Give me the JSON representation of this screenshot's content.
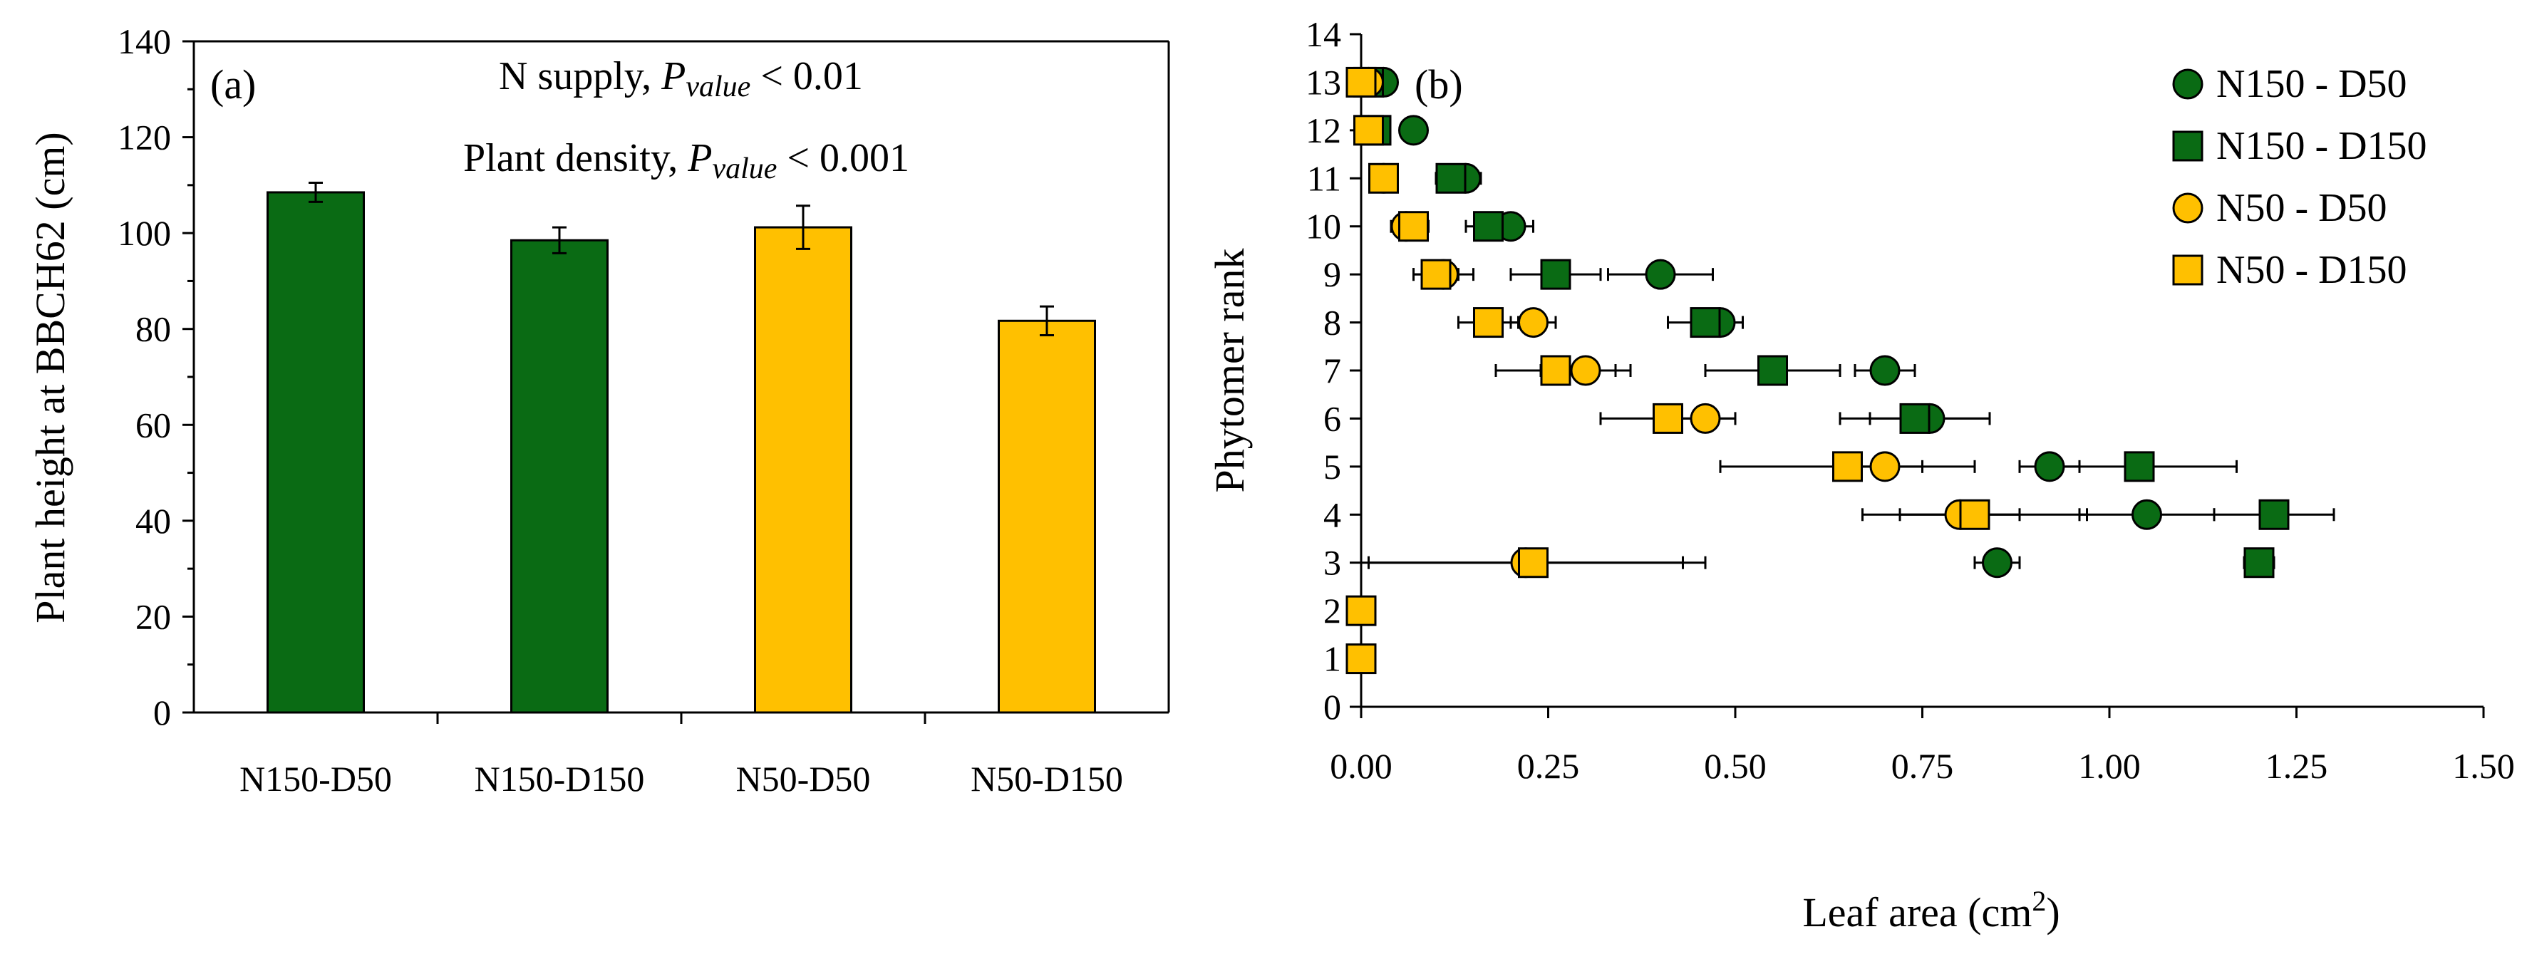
{
  "colors": {
    "green": "#0a6b14",
    "yellow": "#ffc000",
    "outline": "#000000"
  },
  "chart_data": [
    {
      "panel": "(a)",
      "type": "bar",
      "title": "",
      "ylabel": "Plant height at BBCH62  (cm)",
      "xlabel": "",
      "ylim": [
        0,
        140
      ],
      "ytick_step": 20,
      "yticks": [
        "0",
        "20",
        "40",
        "60",
        "80",
        "100",
        "120",
        "140"
      ],
      "categories": [
        "N150-D50",
        "N150-D150",
        "N50-D50",
        "N50-D150"
      ],
      "values": [
        108.5,
        98.5,
        101.2,
        81.7
      ],
      "errors": [
        2.0,
        2.7,
        4.5,
        3.0
      ],
      "bar_colors": [
        "green",
        "green",
        "yellow",
        "yellow"
      ],
      "annotations": [
        {
          "prefix": "N supply, ",
          "italic": "P",
          "sub": "value",
          "suffix": " < 0.01"
        },
        {
          "prefix": "Plant density, ",
          "italic": "P",
          "sub": "value",
          "suffix": " < 0.001"
        }
      ],
      "grid": false
    },
    {
      "panel": "(b)",
      "type": "scatter",
      "title": "",
      "xlabel": "Leaf area (cm",
      "xlabel_sup": "2",
      "xlabel_end": ")",
      "ylabel": "Phytomer  rank",
      "xlim": [
        0,
        1.5
      ],
      "ylim": [
        0,
        14
      ],
      "xticks": [
        0,
        0.25,
        0.5,
        0.75,
        1.0,
        1.25,
        1.5
      ],
      "xtick_labels": [
        "0.00",
        "0.25",
        "0.50",
        "0.75",
        "1.00",
        "1.25",
        "1.50"
      ],
      "yticks": [
        "0",
        "1",
        "2",
        "3",
        "4",
        "5",
        "6",
        "7",
        "8",
        "9",
        "10",
        "11",
        "12",
        "13",
        "14"
      ],
      "legend_position": "top-right",
      "grid": false,
      "series": [
        {
          "name": "N150 - D50",
          "marker": "circle",
          "color": "green",
          "points": [
            {
              "rank": 3,
              "x": 0.85,
              "err": 0.03
            },
            {
              "rank": 4,
              "x": 1.05,
              "err": 0.09
            },
            {
              "rank": 5,
              "x": 0.92,
              "err": 0.04
            },
            {
              "rank": 6,
              "x": 0.76,
              "err": 0.08
            },
            {
              "rank": 7,
              "x": 0.7,
              "err": 0.04
            },
            {
              "rank": 8,
              "x": 0.48,
              "err": 0.03
            },
            {
              "rank": 9,
              "x": 0.4,
              "err": 0.07
            },
            {
              "rank": 10,
              "x": 0.2,
              "err": 0.03
            },
            {
              "rank": 11,
              "x": 0.14,
              "err": 0.02
            },
            {
              "rank": 12,
              "x": 0.07,
              "err": 0.01
            },
            {
              "rank": 13,
              "x": 0.03,
              "err": 0.01
            }
          ]
        },
        {
          "name": "N150 - D150",
          "marker": "square",
          "color": "green",
          "points": [
            {
              "rank": 3,
              "x": 1.2,
              "err": 0.02
            },
            {
              "rank": 4,
              "x": 1.22,
              "err": 0.08
            },
            {
              "rank": 5,
              "x": 1.04,
              "err": 0.13
            },
            {
              "rank": 6,
              "x": 0.74,
              "err": 0.1
            },
            {
              "rank": 7,
              "x": 0.55,
              "err": 0.09
            },
            {
              "rank": 8,
              "x": 0.46,
              "err": 0.05
            },
            {
              "rank": 9,
              "x": 0.26,
              "err": 0.06
            },
            {
              "rank": 10,
              "x": 0.17,
              "err": 0.03
            },
            {
              "rank": 11,
              "x": 0.12,
              "err": 0.02
            },
            {
              "rank": 12,
              "x": 0.02,
              "err": 0.01
            },
            {
              "rank": 13,
              "x": 0.01,
              "err": 0.01
            }
          ]
        },
        {
          "name": "N50 - D50",
          "marker": "circle",
          "color": "yellow",
          "points": [
            {
              "rank": 3,
              "x": 0.22,
              "err": 0.21
            },
            {
              "rank": 4,
              "x": 0.8,
              "err": 0.08
            },
            {
              "rank": 5,
              "x": 0.7,
              "err": 0.05
            },
            {
              "rank": 6,
              "x": 0.46,
              "err": 0.04
            },
            {
              "rank": 7,
              "x": 0.3,
              "err": 0.06
            },
            {
              "rank": 8,
              "x": 0.23,
              "err": 0.03
            },
            {
              "rank": 9,
              "x": 0.11,
              "err": 0.04
            },
            {
              "rank": 10,
              "x": 0.06,
              "err": 0.02
            },
            {
              "rank": 11,
              "x": 0.03,
              "err": 0.01
            },
            {
              "rank": 12,
              "x": 0.01,
              "err": 0.01
            },
            {
              "rank": 13,
              "x": 0.01,
              "err": 0.01
            }
          ]
        },
        {
          "name": "N50 - D150",
          "marker": "square",
          "color": "yellow",
          "points": [
            {
              "rank": 1,
              "x": 0.0,
              "err": 0
            },
            {
              "rank": 2,
              "x": 0.0,
              "err": 0
            },
            {
              "rank": 3,
              "x": 0.23,
              "err": 0.23
            },
            {
              "rank": 4,
              "x": 0.82,
              "err": 0.15
            },
            {
              "rank": 5,
              "x": 0.65,
              "err": 0.17
            },
            {
              "rank": 6,
              "x": 0.41,
              "err": 0.09
            },
            {
              "rank": 7,
              "x": 0.26,
              "err": 0.08
            },
            {
              "rank": 8,
              "x": 0.17,
              "err": 0.04
            },
            {
              "rank": 9,
              "x": 0.1,
              "err": 0.03
            },
            {
              "rank": 10,
              "x": 0.07,
              "err": 0.02
            },
            {
              "rank": 11,
              "x": 0.03,
              "err": 0.01
            },
            {
              "rank": 12,
              "x": 0.01,
              "err": 0.01
            },
            {
              "rank": 13,
              "x": 0.0,
              "err": 0.01
            }
          ]
        }
      ]
    }
  ]
}
